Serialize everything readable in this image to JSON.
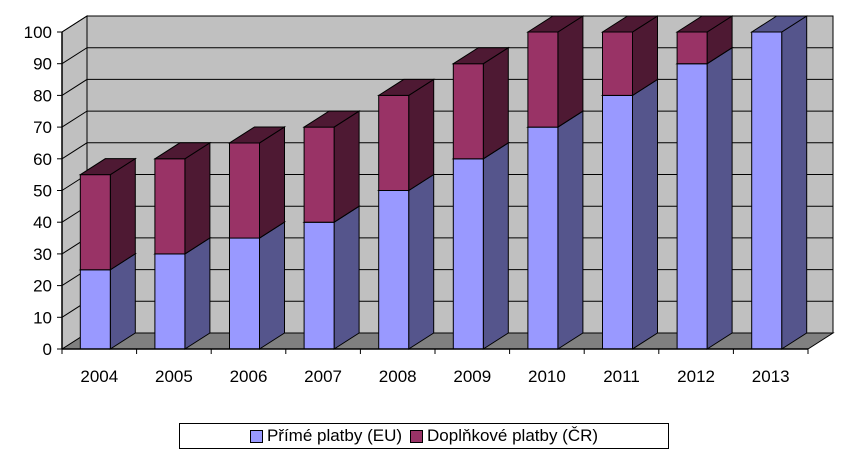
{
  "chart_data": {
    "type": "bar",
    "stacked": true,
    "three_d": true,
    "categories": [
      "2004",
      "2005",
      "2006",
      "2007",
      "2008",
      "2009",
      "2010",
      "2011",
      "2012",
      "2013"
    ],
    "series": [
      {
        "name": "Přímé platby (EU)",
        "values": [
          25,
          30,
          35,
          40,
          50,
          60,
          70,
          80,
          90,
          100
        ],
        "color": "#9999ff",
        "side_color": "#55558c"
      },
      {
        "name": "Doplňkové platby (ČR)",
        "values": [
          30,
          30,
          30,
          30,
          30,
          30,
          30,
          20,
          10,
          0
        ],
        "color": "#993366",
        "side_color": "#4e1933"
      }
    ],
    "ylim": [
      0,
      100
    ],
    "yticks": [
      "0",
      "10",
      "20",
      "30",
      "40",
      "50",
      "60",
      "70",
      "80",
      "90",
      "100"
    ],
    "grid": true,
    "legend_position": "bottom",
    "wall_color": "#c0c0c0",
    "floor_color": "#808080"
  }
}
